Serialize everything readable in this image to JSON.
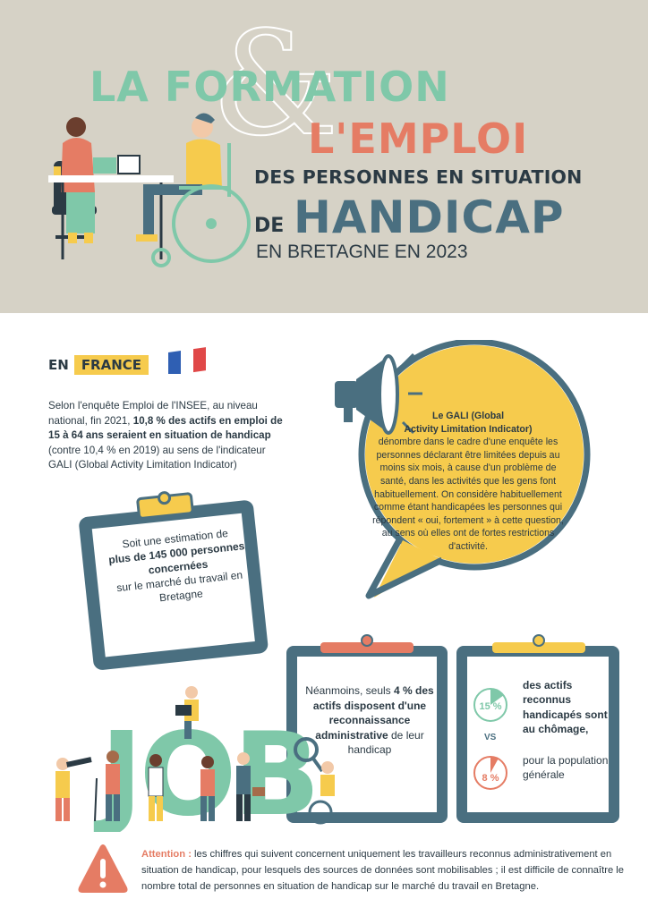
{
  "header": {
    "title_line1": "LA FORMATION",
    "ampersand": "&",
    "title_line2": "L'EMPLOI",
    "title_line3": "DES PERSONNES EN SITUATION",
    "title_de": "DE",
    "title_handicap": "HANDICAP",
    "subtitle": "EN BRETAGNE EN 2023"
  },
  "colors": {
    "header_bg": "#d6d2c6",
    "green": "#7fc8a9",
    "coral": "#e57c64",
    "slate": "#4a6f80",
    "yellow": "#f6cb4d",
    "dark": "#2b3a44"
  },
  "section_france": {
    "prefix": "EN",
    "highlight": "FRANCE",
    "flag_icon": "france-flag-icon",
    "intro_part1": "Selon l'enquête Emploi de l'INSEE, au niveau national, fin 2021, ",
    "intro_bold": "10,8 % des actifs en emploi de 15 à 64 ans seraient en situation de handicap",
    "intro_part2": " (contre 10,4 % en 2019) au sens de l'indicateur GALI (Global Activity Limitation Indicator)"
  },
  "gali": {
    "icon": "megaphone-icon",
    "title_line1": "Le GALI (Global",
    "title_line2": "Activity Limitation Indicator)",
    "body": "dénombre dans le cadre d'une enquête les personnes déclarant être limitées depuis au moins six mois, à cause d'un problème de santé, dans les activités que les gens font habituellement. On considère habituellement comme étant handicapées les personnes qui répondent « oui, fortement » à cette question, au sens où elles ont de fortes restrictions d'activité."
  },
  "clipboard_estimation": {
    "line1": "Soit une estimation de",
    "bold": "plus de 145 000 personnes concernées",
    "line2": "sur le marché du travail en Bretagne"
  },
  "clipboard_recognition": {
    "part1": "Néanmoins, seuls ",
    "bold1": "4 % des actifs disposent d'une reconnaissance administrative",
    "part2": " de leur handicap"
  },
  "clipboard_chomage": {
    "pie1_label": "15 %",
    "pie1_value": 15,
    "stat1": "des actifs reconnus handicapés sont au chômage,",
    "vs": "VS",
    "pie2_label": "8 %",
    "pie2_value": 8,
    "stat2": "pour la population générale"
  },
  "job_illustration": {
    "word": "JOB",
    "icon": "job-people-illustration-icon"
  },
  "attention": {
    "icon": "warning-icon",
    "label": "Attention :",
    "text": " les chiffres qui suivent concernent uniquement les travailleurs reconnus administrativement en situation de handicap, pour lesquels des sources de données sont mobilisables ; il est difficile de connaître le nombre total de personnes en situation de handicap sur le marché du travail en Bretagne."
  }
}
